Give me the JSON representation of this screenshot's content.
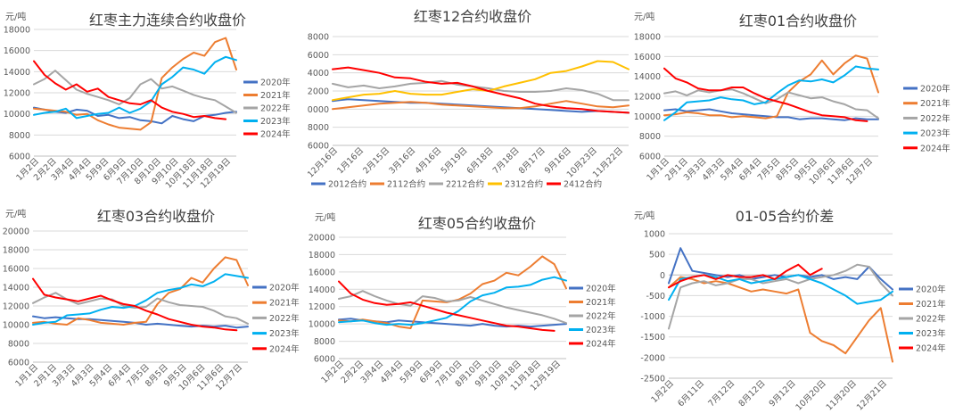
{
  "colors": {
    "2020年": "#4472c4",
    "2021年": "#ed7d31",
    "2022年": "#a5a5a5",
    "2023年": "#00b0f0",
    "2024年": "#ff0000",
    "2012合约": "#4472c4",
    "2112合约": "#ed7d31",
    "2212合约": "#a5a5a5",
    "2312合约": "#ffc000",
    "2412合约": "#ff0000"
  },
  "chart_data": [
    {
      "type": "line",
      "title": "红枣主力连续合约收盘价",
      "unit": "元/吨",
      "ylim": [
        6000,
        18000
      ],
      "yticks": [
        6000,
        8000,
        10000,
        12000,
        14000,
        16000,
        18000
      ],
      "xticks": [
        "1月2日",
        "2月2日",
        "3月4日",
        "4月4日",
        "5月9日",
        "6月9日",
        "7月10日",
        "8月10日",
        "9月10日",
        "10月18日",
        "11月18日",
        "12月19日"
      ],
      "legend": "right",
      "series": [
        {
          "name": "2020年",
          "values": [
            10600,
            10400,
            10200,
            10100,
            10400,
            10300,
            9800,
            9900,
            9600,
            9700,
            9400,
            9300,
            9100,
            9800,
            9500,
            9300,
            9800,
            9900,
            10100,
            10200
          ]
        },
        {
          "name": "2021年",
          "values": [
            10500,
            10400,
            10300,
            10200,
            9900,
            10000,
            9400,
            9000,
            8700,
            8600,
            8500,
            9200,
            13400,
            14400,
            15200,
            15800,
            15500,
            16800,
            17200,
            14200
          ]
        },
        {
          "name": "2022年",
          "values": [
            12800,
            13300,
            14100,
            13200,
            12300,
            11900,
            11600,
            11300,
            10900,
            11500,
            12800,
            13300,
            12400,
            12600,
            12200,
            11800,
            11500,
            11300,
            10700,
            10100
          ]
        },
        {
          "name": "2023年",
          "values": [
            9900,
            10100,
            10200,
            10500,
            9600,
            9800,
            10000,
            10100,
            10600,
            10100,
            10500,
            11200,
            12800,
            13500,
            14400,
            14200,
            13800,
            14900,
            15400,
            15100
          ]
        },
        {
          "name": "2024年",
          "values": [
            15000,
            13700,
            12900,
            12300,
            12800,
            12100,
            12400,
            11600,
            11300,
            11000,
            10900,
            11300,
            10600,
            10200,
            10000,
            9700,
            9800,
            9600,
            9500,
            null
          ]
        }
      ]
    },
    {
      "type": "line",
      "title": "红枣12合约收盘价",
      "unit": "元/吨",
      "ylim": [
        6000,
        18000
      ],
      "yticks": [
        6000,
        8000,
        10000,
        12000,
        14000,
        16000,
        18000
      ],
      "xticks": [
        "12月16日",
        "1月16日",
        "2月15日",
        "3月16日",
        "4月16日",
        "5月19日",
        "6月18日",
        "7月18日",
        "8月17日",
        "9月16日",
        "10月23日",
        "11月22日"
      ],
      "legend": "bottom",
      "series": [
        {
          "name": "2012合约",
          "values": [
            10900,
            11100,
            11000,
            10900,
            10800,
            10700,
            10700,
            10600,
            10500,
            10400,
            10300,
            10200,
            10100,
            10000,
            9900,
            9800,
            9700,
            9800,
            9700,
            9600
          ]
        },
        {
          "name": "2112合约",
          "values": [
            10000,
            10200,
            10400,
            10600,
            10700,
            10800,
            10700,
            10500,
            10400,
            10300,
            10200,
            10100,
            10100,
            10300,
            10600,
            10900,
            10600,
            10300,
            10200,
            10400
          ]
        },
        {
          "name": "2212合约",
          "values": [
            12800,
            12400,
            12600,
            12300,
            12500,
            12800,
            12900,
            13100,
            12700,
            12500,
            12300,
            12000,
            11900,
            11900,
            12000,
            12300,
            12100,
            11700,
            11000,
            11000
          ]
        },
        {
          "name": "2312合约",
          "values": [
            11000,
            11300,
            11600,
            11700,
            12000,
            11700,
            11600,
            11600,
            11900,
            12200,
            12000,
            12500,
            12900,
            13300,
            14000,
            14200,
            14700,
            15300,
            15200,
            14400
          ]
        },
        {
          "name": "2412合约",
          "values": [
            14400,
            14600,
            14300,
            14000,
            13500,
            13400,
            13000,
            12800,
            12900,
            12500,
            12000,
            11600,
            11200,
            10600,
            10300,
            10100,
            10000,
            9800,
            9700,
            9600
          ]
        }
      ]
    },
    {
      "type": "line",
      "title": "红枣01合约收盘价",
      "unit": "元/吨",
      "ylim": [
        6000,
        18000
      ],
      "yticks": [
        6000,
        8000,
        10000,
        12000,
        14000,
        16000,
        18000
      ],
      "xticks": [
        "1月1日",
        "2月1日",
        "3月3日",
        "4月3日",
        "5月4日",
        "6月4日",
        "7月5日",
        "8月5日",
        "9月5日",
        "10月6日",
        "11月6日",
        "12月7日"
      ],
      "legend": "right",
      "series": [
        {
          "name": "2020年",
          "values": [
            10600,
            10700,
            10500,
            10600,
            10700,
            10500,
            10300,
            10200,
            10100,
            10000,
            9900,
            9900,
            9700,
            9800,
            9800,
            9700,
            9600,
            9800,
            9700,
            9700
          ]
        },
        {
          "name": "2021年",
          "values": [
            10100,
            10200,
            10400,
            10300,
            10100,
            10100,
            9900,
            10000,
            9900,
            9800,
            10000,
            12400,
            13500,
            14200,
            15600,
            14200,
            15300,
            16100,
            15800,
            12400
          ]
        },
        {
          "name": "2022年",
          "values": [
            12300,
            12500,
            12100,
            12600,
            12400,
            12600,
            12700,
            12300,
            11800,
            11300,
            11700,
            12400,
            12100,
            11800,
            11900,
            11500,
            11200,
            10700,
            10600,
            9800
          ]
        },
        {
          "name": "2023年",
          "values": [
            9600,
            10400,
            11400,
            11500,
            11600,
            11900,
            11700,
            11600,
            11200,
            11400,
            12300,
            13100,
            13600,
            13500,
            13700,
            13400,
            14100,
            15000,
            14800,
            14700
          ]
        },
        {
          "name": "2024年",
          "values": [
            14800,
            13800,
            13400,
            12800,
            12600,
            12600,
            12900,
            12900,
            12300,
            11800,
            11500,
            11200,
            10800,
            10400,
            10100,
            10000,
            9900,
            9600,
            9500,
            null
          ]
        }
      ]
    },
    {
      "type": "line",
      "title": "红枣03合约收盘价",
      "unit": "元/吨",
      "ylim": [
        6000,
        20000
      ],
      "yticks": [
        6000,
        8000,
        10000,
        12000,
        14000,
        16000,
        18000,
        20000
      ],
      "xticks": [
        "1月1日",
        "2月1日",
        "3月3日",
        "4月3日",
        "5月4日",
        "6月4日",
        "7月5日",
        "8月5日",
        "9月5日",
        "10月6日",
        "11月6日",
        "12月7日"
      ],
      "legend": "right",
      "series": [
        {
          "name": "2020年",
          "values": [
            10900,
            10700,
            10800,
            10700,
            10600,
            10600,
            10500,
            10400,
            10300,
            10200,
            10000,
            10100,
            10000,
            9900,
            9800,
            9900,
            9800,
            9900,
            9700,
            9800
          ]
        },
        {
          "name": "2021年",
          "values": [
            10200,
            10300,
            10100,
            10000,
            10700,
            10500,
            10200,
            10100,
            10000,
            10200,
            10300,
            12200,
            13400,
            13800,
            15000,
            14500,
            16000,
            17200,
            16900,
            14200
          ]
        },
        {
          "name": "2022年",
          "values": [
            12300,
            12900,
            13400,
            12700,
            12200,
            12500,
            12800,
            12700,
            12000,
            11800,
            11900,
            12800,
            12400,
            12100,
            12000,
            11900,
            11500,
            10900,
            10700,
            10100
          ]
        },
        {
          "name": "2023年",
          "values": [
            10000,
            10200,
            10300,
            11000,
            11100,
            11200,
            11600,
            11900,
            11800,
            12000,
            12600,
            13400,
            13700,
            13900,
            14300,
            14100,
            14600,
            15400,
            15200,
            15000
          ]
        },
        {
          "name": "2024年",
          "values": [
            14900,
            13200,
            12900,
            12700,
            12500,
            12800,
            13100,
            12600,
            12200,
            12000,
            11500,
            11100,
            10600,
            10300,
            10000,
            9800,
            9700,
            9500,
            9400,
            null
          ]
        }
      ]
    },
    {
      "type": "line",
      "title": "红枣05合约收盘价",
      "unit": "元/吨",
      "ylim": [
        6000,
        20000
      ],
      "yticks": [
        6000,
        8000,
        10000,
        12000,
        14000,
        16000,
        18000,
        20000
      ],
      "xticks": [
        "1月2日",
        "2月2日",
        "3月4日",
        "4月4日",
        "5月9日",
        "6月9日",
        "7月10日",
        "8月10日",
        "9月10日",
        "10月18日",
        "11月18日",
        "12月19日"
      ],
      "legend": "right",
      "series": [
        {
          "name": "2020年",
          "values": [
            10500,
            10600,
            10400,
            10300,
            10200,
            10400,
            10300,
            10200,
            10100,
            10000,
            9900,
            9800,
            10000,
            9800,
            9700,
            9800,
            9700,
            9800,
            9900,
            10000
          ]
        },
        {
          "name": "2021年",
          "values": [
            10400,
            10300,
            10500,
            10300,
            10100,
            9700,
            9500,
            12700,
            12600,
            12500,
            12800,
            13500,
            14600,
            15000,
            15900,
            15600,
            16600,
            17800,
            16900,
            14100
          ]
        },
        {
          "name": "2022年",
          "values": [
            12900,
            13200,
            13800,
            13200,
            12700,
            12300,
            12100,
            13200,
            13000,
            12600,
            12700,
            13100,
            12700,
            12300,
            11900,
            11600,
            11300,
            11000,
            10600,
            10100
          ]
        },
        {
          "name": "2023年",
          "values": [
            10200,
            10300,
            10400,
            10100,
            9900,
            10000,
            9900,
            10100,
            10400,
            10700,
            11500,
            12600,
            13300,
            13600,
            14200,
            14300,
            14500,
            15100,
            15400,
            15000
          ]
        },
        {
          "name": "2024年",
          "values": [
            14900,
            13500,
            12800,
            12400,
            12200,
            12300,
            12500,
            12100,
            11700,
            11300,
            11000,
            10700,
            10400,
            10100,
            9800,
            9700,
            9500,
            9300,
            9200,
            null
          ]
        }
      ]
    },
    {
      "type": "line",
      "title": "01-05合约价差",
      "unit": "元/吨",
      "ylim": [
        -2500,
        1000
      ],
      "yticks": [
        -2500,
        -2000,
        -1500,
        -1000,
        -500,
        0,
        500,
        1000
      ],
      "xticks": [
        "1月2日",
        "6月11日",
        "7月12日",
        "8月12日",
        "9月12日",
        "10月20日",
        "11月20日",
        "12月21日"
      ],
      "legend": "right",
      "series": [
        {
          "name": "2020年",
          "values": [
            -200,
            650,
            100,
            50,
            0,
            -50,
            0,
            -100,
            -50,
            0,
            -50,
            0,
            -50,
            0,
            -100,
            -50,
            -100,
            200,
            -100,
            -350
          ]
        },
        {
          "name": "2021年",
          "values": [
            -300,
            -50,
            -100,
            -200,
            -150,
            -200,
            -300,
            -400,
            -350,
            -400,
            -450,
            -350,
            -1400,
            -1600,
            -1700,
            -1900,
            -1500,
            -1100,
            -800,
            -2100
          ]
        },
        {
          "name": "2022年",
          "values": [
            -1300,
            -300,
            -200,
            -150,
            -250,
            -200,
            -100,
            -100,
            -200,
            -150,
            -100,
            -200,
            -100,
            -50,
            0,
            100,
            250,
            200,
            -200,
            -500
          ]
        },
        {
          "name": "2023年",
          "values": [
            -600,
            -100,
            -50,
            0,
            -50,
            -150,
            -100,
            -200,
            -150,
            -100,
            -50,
            0,
            -100,
            -200,
            -350,
            -500,
            -700,
            -650,
            -600,
            -400
          ]
        },
        {
          "name": "2024年",
          "values": [
            -300,
            -150,
            -50,
            0,
            -100,
            0,
            -50,
            -50,
            0,
            -100,
            100,
            250,
            0,
            150,
            null,
            null,
            null,
            null,
            null,
            null
          ]
        }
      ]
    }
  ]
}
